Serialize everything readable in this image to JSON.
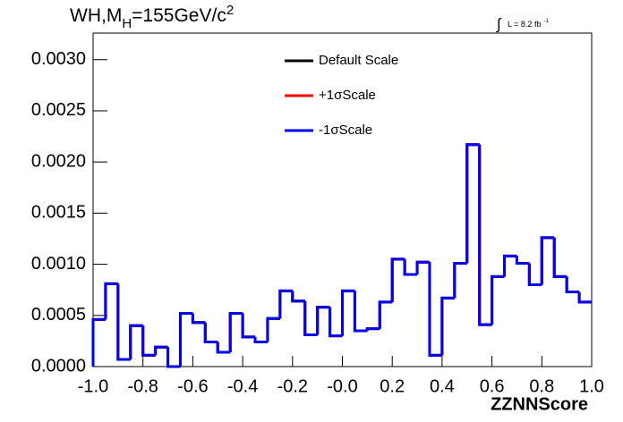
{
  "chart_data": {
    "type": "histogram",
    "title_parts": [
      "WH,M",
      "H",
      "=155GeV/c",
      "2"
    ],
    "annotation_parts": [
      "∫",
      "L = 8.2 fb",
      "-1"
    ],
    "x_label": "ZZNNScore",
    "bins": [
      -1.0,
      -0.95,
      -0.9,
      -0.85,
      -0.8,
      -0.75,
      -0.7,
      -0.65,
      -0.6,
      -0.55,
      -0.5,
      -0.45,
      -0.4,
      -0.35,
      -0.3,
      -0.25,
      -0.2,
      -0.15,
      -0.1,
      -0.05,
      0.0,
      0.05,
      0.1,
      0.15,
      0.2,
      0.25,
      0.3,
      0.35,
      0.4,
      0.45,
      0.5,
      0.55,
      0.6,
      0.65,
      0.7,
      0.75,
      0.8,
      0.85,
      0.9,
      0.95,
      1.0
    ],
    "series": [
      {
        "name": "Default Scale",
        "color": "#000000",
        "values": [
          0.00046,
          0.00081,
          7e-05,
          0.0004,
          0.00011,
          0.00019,
          0.0,
          0.00052,
          0.00043,
          0.00024,
          0.00014,
          0.00052,
          0.00029,
          0.00024,
          0.00047,
          0.00074,
          0.00064,
          0.00031,
          0.00058,
          0.0003,
          0.00074,
          0.00035,
          0.00037,
          0.00063,
          0.00105,
          0.0009,
          0.00102,
          0.00011,
          0.00067,
          0.00101,
          0.00217,
          0.00041,
          0.00088,
          0.00108,
          0.00101,
          0.0008,
          0.00126,
          0.00088,
          0.00073,
          0.00063
        ]
      },
      {
        "name": "+1σScale",
        "color": "#ff0000",
        "values": [
          0.00046,
          0.00081,
          7e-05,
          0.0004,
          0.00011,
          0.00019,
          0.0,
          0.00052,
          0.00043,
          0.00024,
          0.00014,
          0.00052,
          0.00029,
          0.00024,
          0.00047,
          0.00074,
          0.00064,
          0.00031,
          0.00058,
          0.0003,
          0.00074,
          0.00035,
          0.00037,
          0.00063,
          0.00105,
          0.0009,
          0.00102,
          0.00011,
          0.00067,
          0.00101,
          0.00217,
          0.00041,
          0.00088,
          0.00108,
          0.00101,
          0.0008,
          0.00126,
          0.00088,
          0.00073,
          0.00063
        ]
      },
      {
        "name": "-1σScale",
        "color": "#0000ee",
        "values": [
          0.00046,
          0.00081,
          7e-05,
          0.0004,
          0.00011,
          0.00019,
          0.0,
          0.00052,
          0.00043,
          0.00024,
          0.00014,
          0.00052,
          0.00029,
          0.00024,
          0.00047,
          0.00074,
          0.00064,
          0.00031,
          0.00058,
          0.0003,
          0.00074,
          0.00035,
          0.00037,
          0.00063,
          0.00105,
          0.0009,
          0.00102,
          0.00011,
          0.00067,
          0.00101,
          0.00217,
          0.00041,
          0.00088,
          0.00108,
          0.00101,
          0.0008,
          0.00126,
          0.00088,
          0.00073,
          0.00063
        ]
      }
    ],
    "xlim": [
      -1.0,
      1.0
    ],
    "ylim": [
      0,
      0.00326
    ],
    "xticks": [
      {
        "value": -1.0,
        "label": "-1.0"
      },
      {
        "value": -0.8,
        "label": "-0.8"
      },
      {
        "value": -0.6,
        "label": "-0.6"
      },
      {
        "value": -0.4,
        "label": "-0.4"
      },
      {
        "value": -0.2,
        "label": "-0.2"
      },
      {
        "value": 0.0,
        "label": "-0.0"
      },
      {
        "value": 0.2,
        "label": "0.2"
      },
      {
        "value": 0.4,
        "label": "0.4"
      },
      {
        "value": 0.6,
        "label": "0.6"
      },
      {
        "value": 0.8,
        "label": "0.8"
      },
      {
        "value": 1.0,
        "label": "1.0"
      }
    ],
    "yticks": [
      {
        "value": 0,
        "label": "0.0000"
      },
      {
        "value": 0.0005,
        "label": "0.0005"
      },
      {
        "value": 0.001,
        "label": "0.0010"
      },
      {
        "value": 0.0015,
        "label": "0.0015"
      },
      {
        "value": 0.002,
        "label": "0.0020"
      },
      {
        "value": 0.0025,
        "label": "0.0025"
      },
      {
        "value": 0.003,
        "label": "0.0030"
      }
    ],
    "legend": "top"
  }
}
